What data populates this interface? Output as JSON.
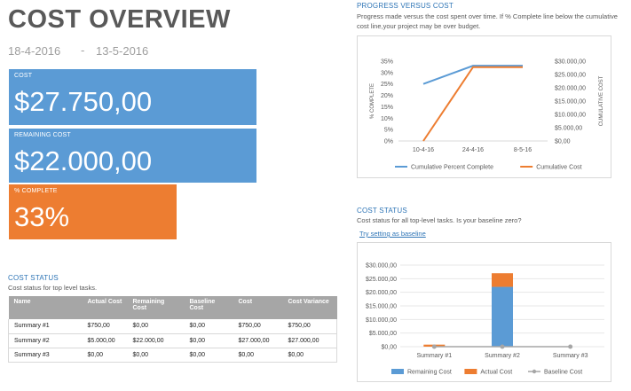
{
  "header": {
    "title": "COST OVERVIEW",
    "start_date": "18-4-2016",
    "date_separator": "-",
    "end_date": "13-5-2016"
  },
  "kpis": {
    "cost": {
      "label": "COST",
      "value": "$27.750,00"
    },
    "remaining": {
      "label": "REMAINING COST",
      "value": "$22.000,00"
    },
    "complete": {
      "label": "% COMPLETE",
      "value": "33%"
    }
  },
  "colors": {
    "blue": "#5b9bd5",
    "orange": "#ed7d31",
    "gray": "#a6a6a6"
  },
  "cost_status_table": {
    "heading": "COST STATUS",
    "subtitle": "Cost status for top level tasks.",
    "columns": [
      "Name",
      "Actual Cost",
      "Remaining Cost",
      "Baseline Cost",
      "Cost",
      "Cost Variance"
    ],
    "rows": [
      [
        "Summary #1",
        "$750,00",
        "$0,00",
        "$0,00",
        "$750,00",
        "$750,00"
      ],
      [
        "Summary #2",
        "$5.000,00",
        "$22.000,00",
        "$0,00",
        "$27.000,00",
        "$27.000,00"
      ],
      [
        "Summary #3",
        "$0,00",
        "$0,00",
        "$0,00",
        "$0,00",
        "$0,00"
      ]
    ]
  },
  "progress_section": {
    "heading": "PROGRESS VERSUS COST",
    "subtitle": "Progress made versus the cost spent over time. If % Complete line below the cumulative cost line,your project may be over budget."
  },
  "cost_status_chart_section": {
    "heading": "COST STATUS",
    "subtitle": "Cost status for all top-level tasks. Is your baseline zero?",
    "link": "Try setting as baseline"
  },
  "chart_data": [
    {
      "type": "line",
      "x": [
        "10-4-16",
        "24-4-16",
        "8-5-16"
      ],
      "series": [
        {
          "name": "Cumulative Percent Complete",
          "axis": "left",
          "values": [
            25,
            33,
            33
          ],
          "color": "#5b9bd5"
        },
        {
          "name": "Cumulative Cost",
          "axis": "right",
          "values": [
            0,
            27750,
            27750
          ],
          "color": "#ed7d31"
        }
      ],
      "ylabel": "% COMPLETE",
      "y2label": "CUMULATIVE COST",
      "ylim": [
        0,
        35
      ],
      "y2lim": [
        0,
        30000
      ],
      "yticks": [
        "0%",
        "5%",
        "10%",
        "15%",
        "20%",
        "25%",
        "30%",
        "35%"
      ],
      "y2ticks": [
        "$0,00",
        "$5.000,00",
        "$10.000,00",
        "$15.000,00",
        "$20.000,00",
        "$25.000,00",
        "$30.000,00"
      ],
      "legend": "bottom",
      "grid": false
    },
    {
      "type": "bar",
      "stacked": true,
      "categories": [
        "Summary #1",
        "Summary #2",
        "Summary #3"
      ],
      "series": [
        {
          "name": "Remaining Cost",
          "values": [
            0,
            22000,
            0
          ],
          "color": "#5b9bd5"
        },
        {
          "name": "Actual Cost",
          "values": [
            750,
            5000,
            0
          ],
          "color": "#ed7d31"
        },
        {
          "name": "Baseline Cost",
          "values": [
            0,
            0,
            0
          ],
          "color": "#a6a6a6",
          "kind": "line"
        }
      ],
      "ylim": [
        0,
        30000
      ],
      "yticks": [
        "$0,00",
        "$5.000,00",
        "$10.000,00",
        "$15.000,00",
        "$20.000,00",
        "$25.000,00",
        "$30.000,00"
      ],
      "legend": "bottom",
      "grid": true
    }
  ]
}
